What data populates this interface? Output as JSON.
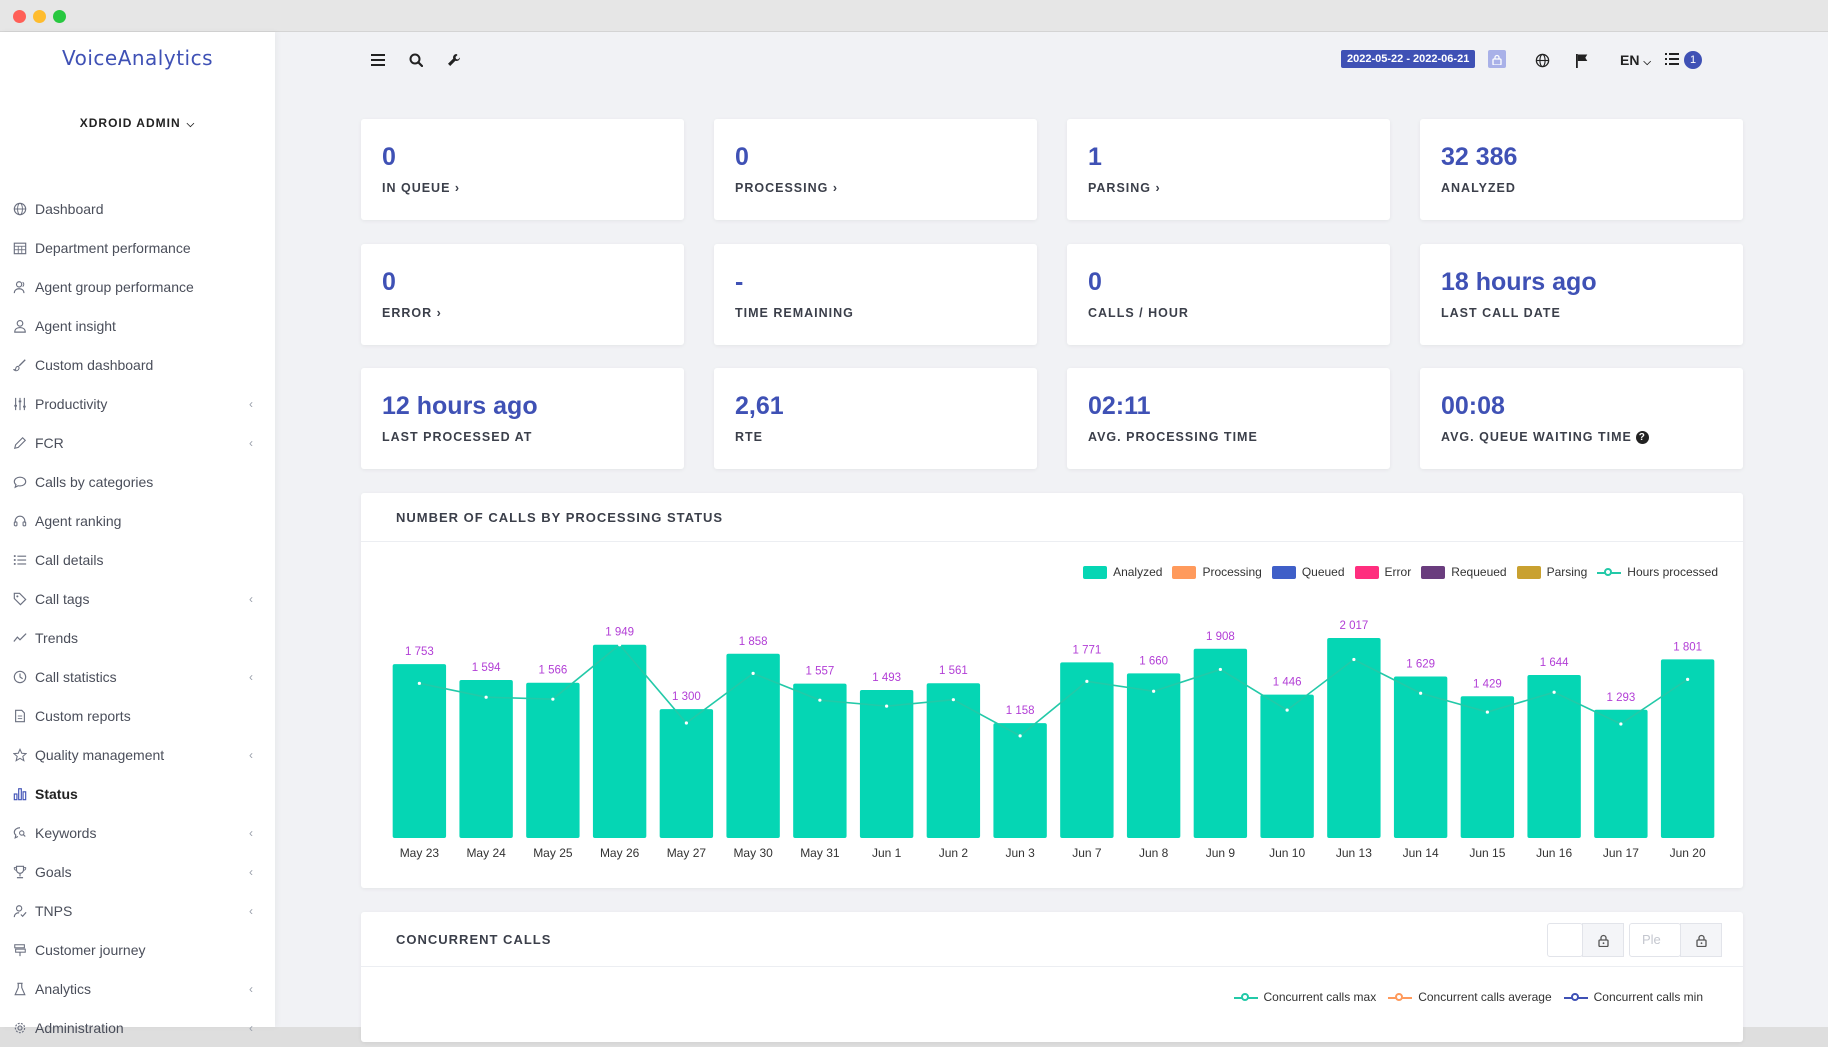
{
  "app": {
    "logo": "VoiceAnalytics",
    "user": "XDROID ADMIN"
  },
  "sidebar": {
    "items": [
      {
        "label": "Dashboard",
        "icon": "globe-icon",
        "caret": false,
        "active": false
      },
      {
        "label": "Department performance",
        "icon": "calendar-grid-icon",
        "caret": false,
        "active": false
      },
      {
        "label": "Agent group performance",
        "icon": "users-icon",
        "caret": false,
        "active": false
      },
      {
        "label": "Agent insight",
        "icon": "user-icon",
        "caret": false,
        "active": false
      },
      {
        "label": "Custom dashboard",
        "icon": "brush-icon",
        "caret": false,
        "active": false
      },
      {
        "label": "Productivity",
        "icon": "sliders-icon",
        "caret": true,
        "active": false
      },
      {
        "label": "FCR",
        "icon": "pen-icon",
        "caret": true,
        "active": false
      },
      {
        "label": "Calls by categories",
        "icon": "comment-icon",
        "caret": false,
        "active": false
      },
      {
        "label": "Agent ranking",
        "icon": "headset-icon",
        "caret": false,
        "active": false
      },
      {
        "label": "Call details",
        "icon": "list-icon",
        "caret": false,
        "active": false
      },
      {
        "label": "Call tags",
        "icon": "tag-icon",
        "caret": true,
        "active": false
      },
      {
        "label": "Trends",
        "icon": "trend-icon",
        "caret": false,
        "active": false
      },
      {
        "label": "Call statistics",
        "icon": "clock-icon",
        "caret": true,
        "active": false
      },
      {
        "label": "Custom reports",
        "icon": "file-icon",
        "caret": false,
        "active": false
      },
      {
        "label": "Quality management",
        "icon": "star-icon",
        "caret": true,
        "active": false
      },
      {
        "label": "Status",
        "icon": "bar-chart-icon",
        "caret": false,
        "active": true
      },
      {
        "label": "Keywords",
        "icon": "search-comment-icon",
        "caret": true,
        "active": false
      },
      {
        "label": "Goals",
        "icon": "trophy-icon",
        "caret": true,
        "active": false
      },
      {
        "label": "TNPS",
        "icon": "user-check-icon",
        "caret": true,
        "active": false
      },
      {
        "label": "Customer journey",
        "icon": "signpost-icon",
        "caret": false,
        "active": false
      },
      {
        "label": "Analytics",
        "icon": "flask-icon",
        "caret": true,
        "active": false
      },
      {
        "label": "Administration",
        "icon": "gear-icon",
        "caret": true,
        "active": false
      }
    ]
  },
  "topbar": {
    "date_range": "2022-05-22 - 2022-06-21",
    "language": "EN",
    "notifications": "1"
  },
  "stats": [
    {
      "value": "0",
      "label": "IN QUEUE ›",
      "help": false
    },
    {
      "value": "0",
      "label": "PROCESSING ›",
      "help": false
    },
    {
      "value": "1",
      "label": "PARSING ›",
      "help": false
    },
    {
      "value": "32 386",
      "label": "ANALYZED",
      "help": false
    },
    {
      "value": "0",
      "label": "ERROR ›",
      "help": false
    },
    {
      "value": "-",
      "label": "TIME REMAINING",
      "help": false
    },
    {
      "value": "0",
      "label": "CALLS / HOUR",
      "help": false
    },
    {
      "value": "18 hours ago",
      "label": "LAST CALL DATE",
      "help": false
    },
    {
      "value": "12 hours ago",
      "label": "LAST PROCESSED AT",
      "help": false
    },
    {
      "value": "2,61",
      "label": "RTE",
      "help": false
    },
    {
      "value": "02:11",
      "label": "AVG. PROCESSING TIME",
      "help": false
    },
    {
      "value": "00:08",
      "label": "AVG. QUEUE WAITING TIME",
      "help": true
    }
  ],
  "panel1": {
    "title": "NUMBER OF CALLS BY PROCESSING STATUS"
  },
  "panel2": {
    "title": "CONCURRENT CALLS",
    "input_placeholder": "Ple",
    "legend": [
      {
        "name": "Concurrent calls max",
        "color": "#23c9a8"
      },
      {
        "name": "Concurrent calls average",
        "color": "#ff9a5c"
      },
      {
        "name": "Concurrent calls min",
        "color": "#3f51b5"
      }
    ]
  },
  "chart_data": {
    "type": "bar",
    "title": "NUMBER OF CALLS BY PROCESSING STATUS",
    "categories": [
      "May 23",
      "May 24",
      "May 25",
      "May 26",
      "May 27",
      "May 30",
      "May 31",
      "Jun 1",
      "Jun 2",
      "Jun 3",
      "Jun 7",
      "Jun 8",
      "Jun 9",
      "Jun 10",
      "Jun 13",
      "Jun 14",
      "Jun 15",
      "Jun 16",
      "Jun 17",
      "Jun 20"
    ],
    "series": [
      {
        "name": "Analyzed",
        "type": "bar",
        "color": "#05d6b4",
        "values": [
          1753,
          1594,
          1566,
          1949,
          1300,
          1858,
          1557,
          1493,
          1561,
          1158,
          1771,
          1660,
          1908,
          1446,
          2017,
          1629,
          1429,
          1644,
          1293,
          1801
        ]
      },
      {
        "name": "Processing",
        "type": "bar",
        "color": "#ff9a5c",
        "values": [
          0,
          0,
          0,
          0,
          0,
          0,
          0,
          0,
          0,
          0,
          0,
          0,
          0,
          0,
          0,
          0,
          0,
          0,
          0,
          0
        ]
      },
      {
        "name": "Queued",
        "type": "bar",
        "color": "#3f5fc8",
        "values": [
          0,
          0,
          0,
          0,
          0,
          0,
          0,
          0,
          0,
          0,
          0,
          0,
          0,
          0,
          0,
          0,
          0,
          0,
          0,
          0
        ]
      },
      {
        "name": "Error",
        "type": "bar",
        "color": "#ff2e7e",
        "values": [
          0,
          0,
          0,
          0,
          0,
          0,
          0,
          0,
          0,
          0,
          0,
          0,
          0,
          0,
          0,
          0,
          0,
          0,
          0,
          0
        ]
      },
      {
        "name": "Requeued",
        "type": "bar",
        "color": "#6a3d7e",
        "values": [
          0,
          0,
          0,
          0,
          0,
          0,
          0,
          0,
          0,
          0,
          0,
          0,
          0,
          0,
          0,
          0,
          0,
          0,
          0,
          0
        ]
      },
      {
        "name": "Parsing",
        "type": "bar",
        "color": "#c9a130",
        "values": [
          0,
          0,
          0,
          0,
          0,
          0,
          0,
          0,
          0,
          0,
          0,
          0,
          0,
          0,
          0,
          0,
          0,
          0,
          0,
          0
        ]
      },
      {
        "name": "Hours processed",
        "type": "line",
        "color": "#23c9a8",
        "values": [
          1560,
          1420,
          1400,
          1949,
          1160,
          1660,
          1390,
          1330,
          1395,
          1030,
          1580,
          1480,
          1700,
          1290,
          1800,
          1460,
          1270,
          1470,
          1150,
          1600
        ]
      }
    ],
    "data_labels": [
      "1 753",
      "1 594",
      "1 566",
      "1 949",
      "1 300",
      "1 858",
      "1 557",
      "1 493",
      "1 561",
      "1 158",
      "1 771",
      "1 660",
      "1 908",
      "1 446",
      "2 017",
      "1 629",
      "1 429",
      "1 644",
      "1 293",
      "1 801"
    ],
    "label_color": "#b23ed6",
    "ylim": [
      0,
      2100
    ],
    "grid": false,
    "legend_position": "top-right"
  }
}
